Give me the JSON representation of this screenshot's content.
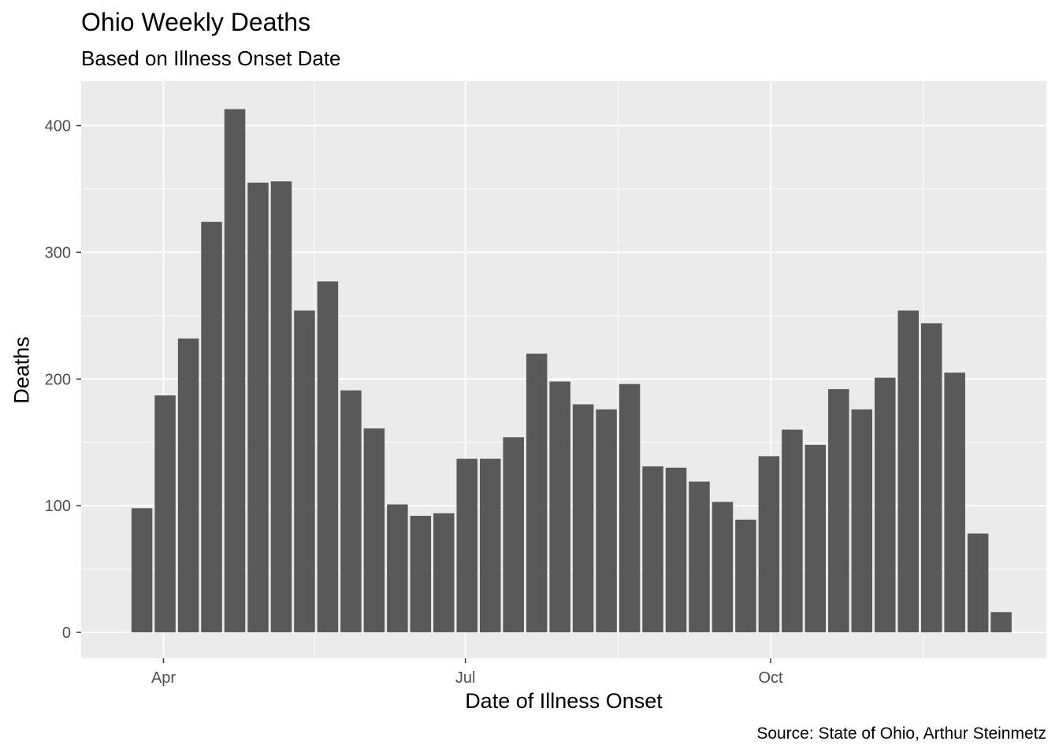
{
  "chart_data": {
    "type": "bar",
    "title": "Ohio Weekly Deaths",
    "subtitle": "Based on Illness Onset Date",
    "xlabel": "Date of Illness Onset",
    "ylabel": "Deaths",
    "caption": "Source: State of Ohio, Arthur Steinmetz",
    "x_start": "2020-03-22",
    "bin_days": 7,
    "values": [
      98,
      187,
      232,
      324,
      413,
      355,
      356,
      254,
      277,
      191,
      161,
      101,
      92,
      94,
      137,
      137,
      154,
      220,
      198,
      180,
      176,
      196,
      131,
      130,
      119,
      103,
      89,
      139,
      160,
      148,
      192,
      176,
      201,
      254,
      244,
      205,
      78,
      16
    ],
    "ylim": [
      0,
      430
    ],
    "yticks": [
      0,
      100,
      200,
      300,
      400
    ],
    "xticks": [
      {
        "label": "Apr",
        "date": "2020-04-01"
      },
      {
        "label": "Jul",
        "date": "2020-07-01"
      },
      {
        "label": "Oct",
        "date": "2020-10-01"
      }
    ],
    "grid": true,
    "bar_color": "#595959",
    "panel_color": "#ebebeb",
    "grid_color": "#ffffff"
  }
}
